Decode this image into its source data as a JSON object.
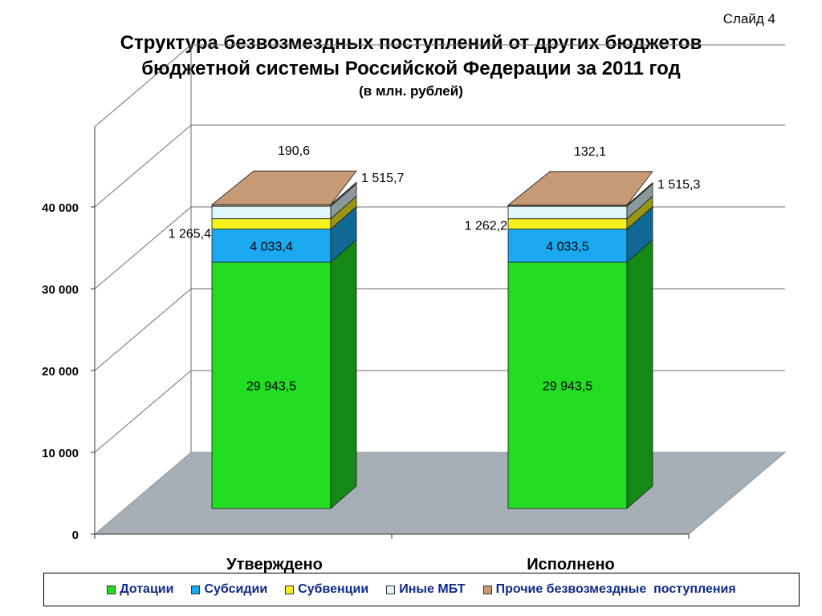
{
  "slide_label": "Слайд 4",
  "title_line1": "Структура безвозмездных поступлений от других бюджетов",
  "title_line2": "бюджетной системы Российской Федерации за 2011 год",
  "subtitle": "(в млн. рублей)",
  "colors": {
    "Дотации": "#22dd22",
    "Субсидии": "#1aa9ef",
    "Субвенции": "#f5f01e",
    "Иные МБТ": "#dff6fa",
    "Прочие безвозмездные  поступления": "#c59a74"
  },
  "chart_data": {
    "type": "bar",
    "stacked": true,
    "categories": [
      "Утверждено",
      "Исполнено"
    ],
    "ylim": [
      0,
      40000
    ],
    "yticks": [
      "0",
      "10 000",
      "20 000",
      "30 000",
      "40 000"
    ],
    "grid": true,
    "legend_position": "bottom",
    "series": [
      {
        "name": "Дотации",
        "values": [
          29943.5,
          29943.5
        ],
        "labels": [
          "29 943,5",
          "29 943,5"
        ]
      },
      {
        "name": "Субсидии",
        "values": [
          4033.4,
          4033.5
        ],
        "labels": [
          "4 033,4",
          "4 033,5"
        ]
      },
      {
        "name": "Субвенции",
        "values": [
          1265.4,
          1262.2
        ],
        "labels": [
          "1 265,4",
          "1 262,2"
        ]
      },
      {
        "name": "Иные МБТ",
        "values": [
          1515.7,
          1515.3
        ],
        "labels": [
          "1 515,7",
          "1 515,3"
        ]
      },
      {
        "name": "Прочие безвозмездные  поступления",
        "values": [
          190.6,
          132.1
        ],
        "labels": [
          "190,6",
          "132,1"
        ]
      }
    ]
  }
}
